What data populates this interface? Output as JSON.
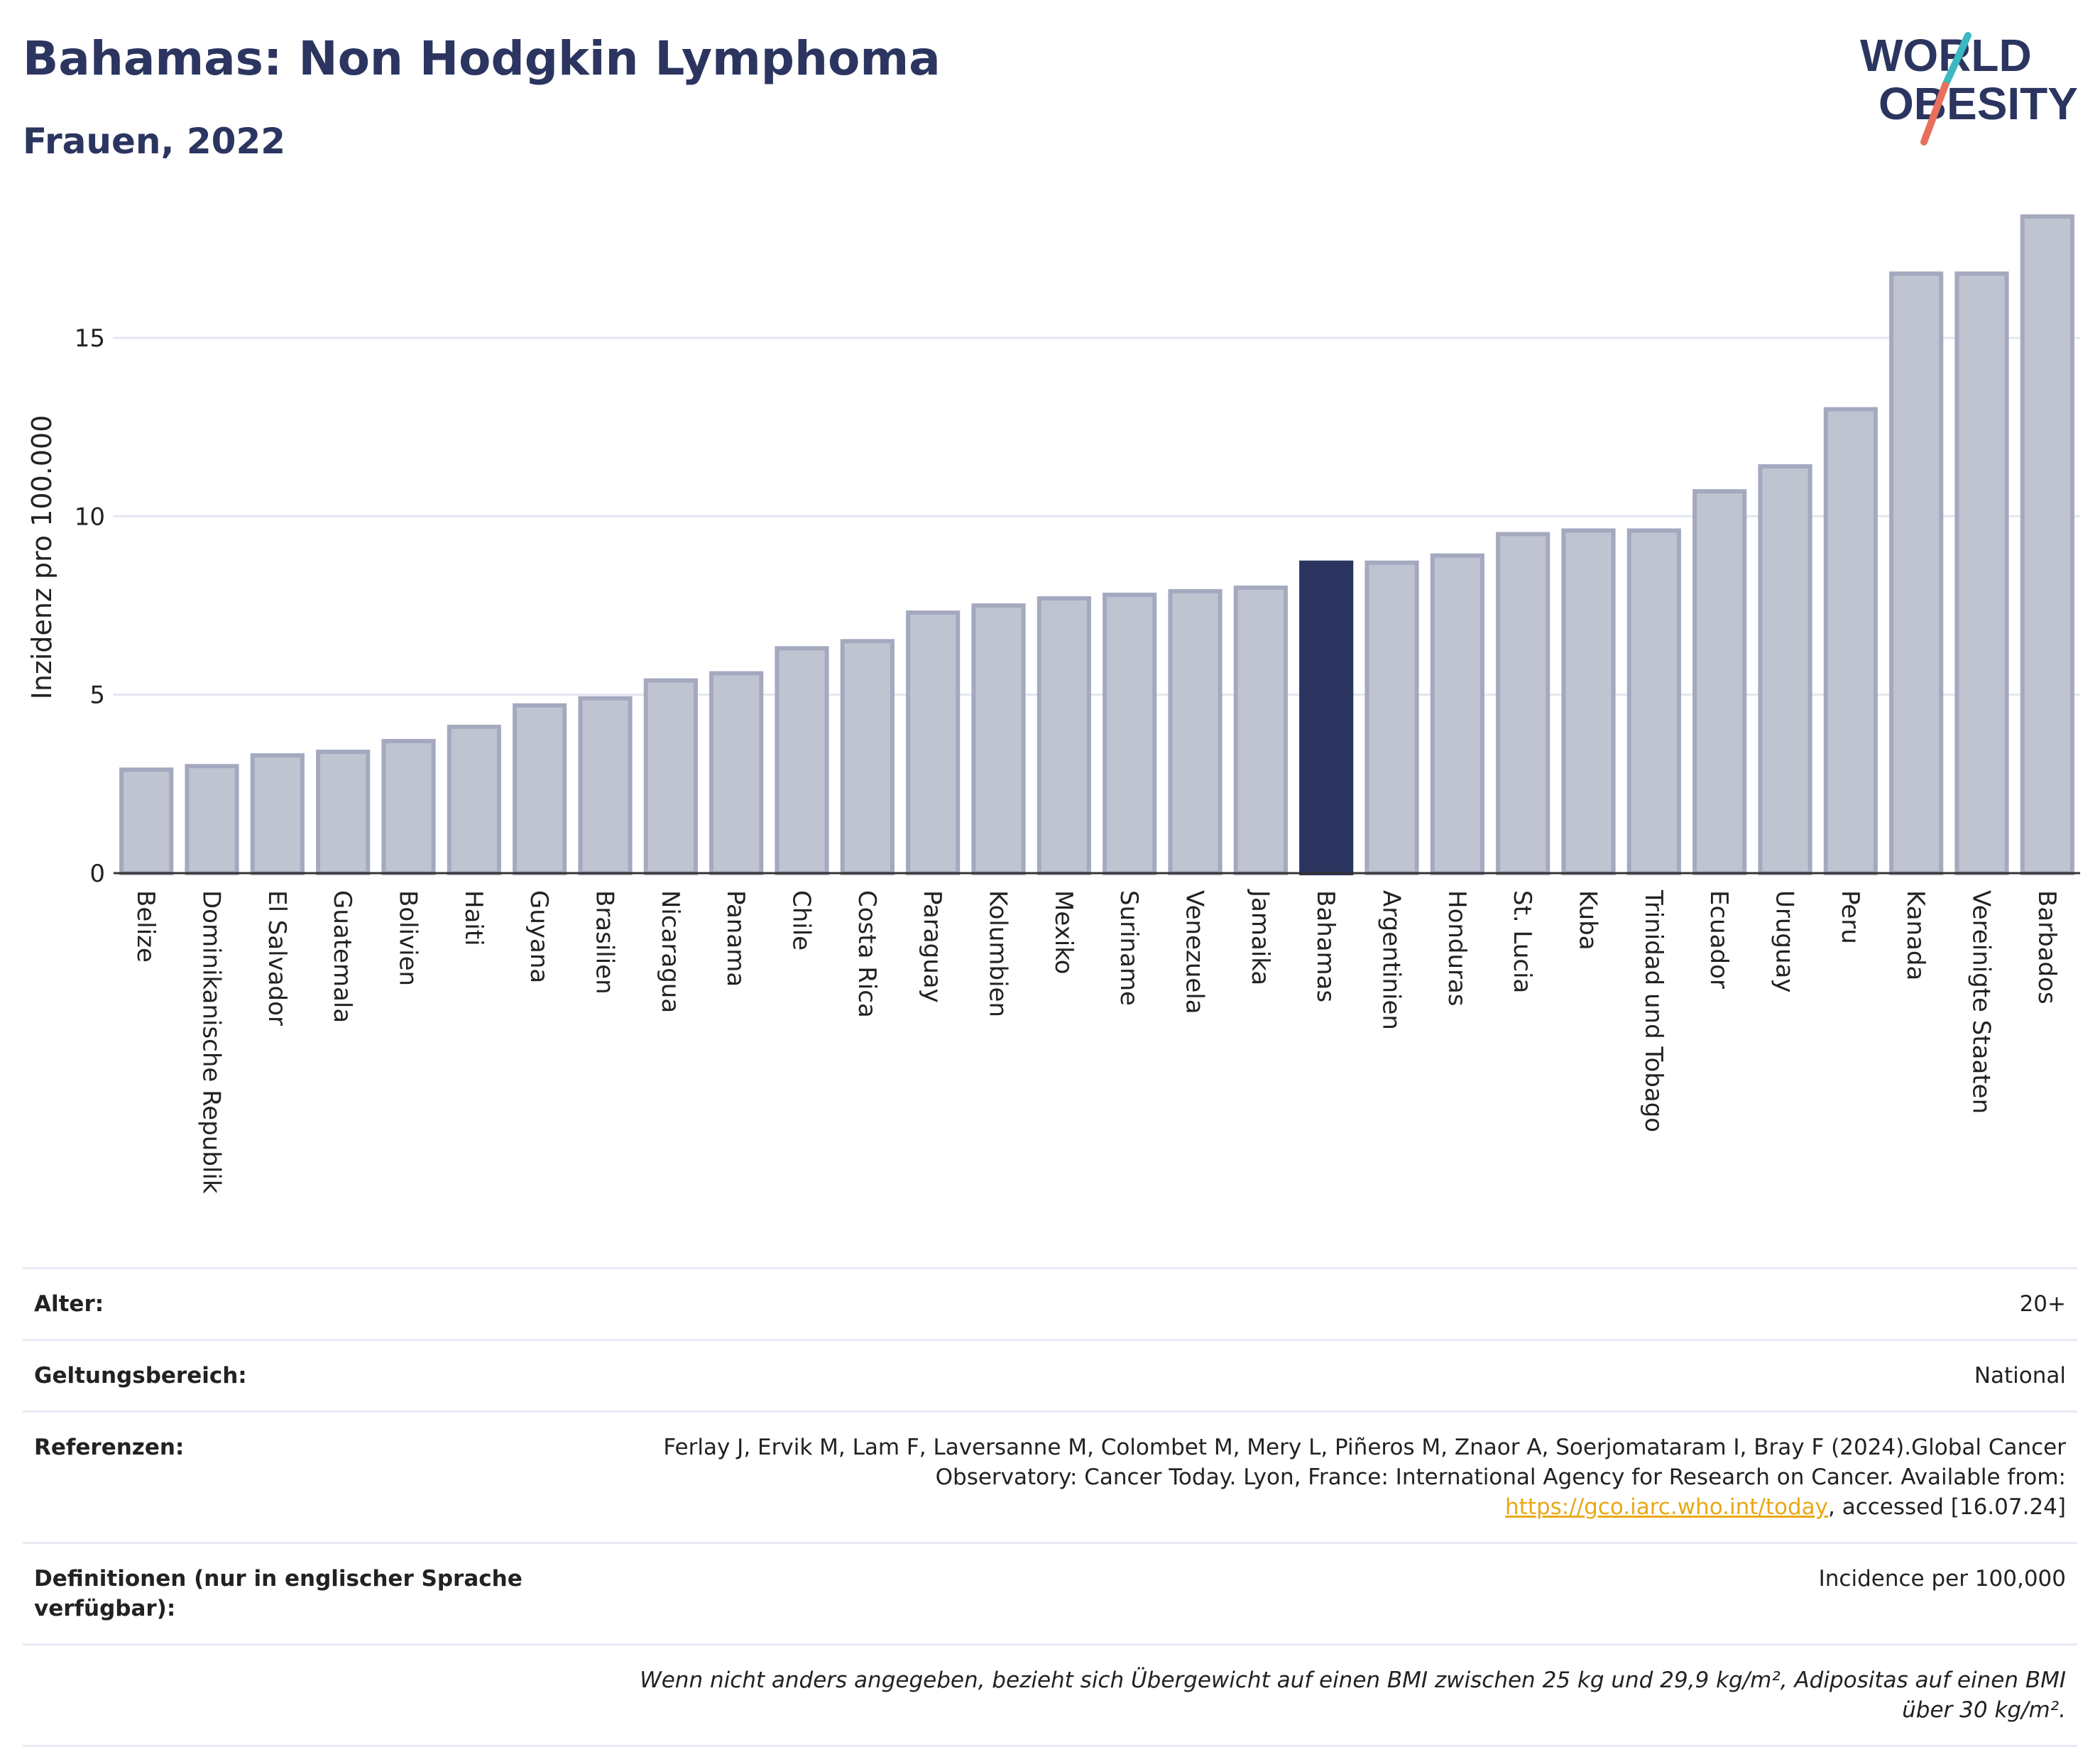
{
  "title": "Bahamas: Non Hodgkin Lymphoma",
  "subtitle": "Frauen, 2022",
  "logo": {
    "line1": "WORLD",
    "line2": "OBESITY",
    "colors": {
      "text": "#2b3560",
      "slash_top": "#3bb8c1",
      "slash_bottom": "#e8705a"
    }
  },
  "chart_data": {
    "type": "bar",
    "title": "Bahamas: Non Hodgkin Lymphoma",
    "subtitle": "Frauen, 2022",
    "xlabel": "",
    "ylabel": "Inzidenz pro 100.000",
    "ylim": [
      0,
      18.5
    ],
    "yticks": [
      0,
      5,
      10,
      15
    ],
    "grid": true,
    "highlight": "Bahamas",
    "colors": {
      "bar": "#c0c4d0",
      "bar_border": "#a4a9bf",
      "highlight": "#2b3560"
    },
    "categories": [
      "Belize",
      "Dominikanische Republik",
      "El Salvador",
      "Guatemala",
      "Bolivien",
      "Haiti",
      "Guyana",
      "Brasilien",
      "Nicaragua",
      "Panama",
      "Chile",
      "Costa Rica",
      "Paraguay",
      "Kolumbien",
      "Mexiko",
      "Suriname",
      "Venezuela",
      "Jamaika",
      "Bahamas",
      "Argentinien",
      "Honduras",
      "St. Lucia",
      "Kuba",
      "Trinidad und Tobago",
      "Ecuador",
      "Uruguay",
      "Peru",
      "Kanada",
      "Vereinigte Staaten",
      "Barbados"
    ],
    "values": [
      2.9,
      3.0,
      3.3,
      3.4,
      3.7,
      4.1,
      4.7,
      4.9,
      5.4,
      5.6,
      6.3,
      6.5,
      7.3,
      7.5,
      7.7,
      7.8,
      7.9,
      8.0,
      8.7,
      8.7,
      8.9,
      9.5,
      9.6,
      9.6,
      10.7,
      11.4,
      13.0,
      16.8,
      16.8,
      18.4
    ]
  },
  "info": {
    "age_label": "Alter:",
    "age_value": "20+",
    "scope_label": "Geltungsbereich:",
    "scope_value": "National",
    "ref_label": "Referenzen:",
    "ref_text_1": "Ferlay J, Ervik M, Lam F, Laversanne M, Colombet M, Mery L, Piñeros M, Znaor A, Soerjomataram I, Bray F (2024).Global Cancer Observatory: Cancer Today. Lyon, France: International Agency for Research on Cancer. Available from: ",
    "ref_link": "https://gco.iarc.who.int/today",
    "ref_text_2": ", accessed [16.07.24]",
    "def_label": "Definitionen (nur in englischer Sprache verfügbar):",
    "def_value": "Incidence per 100,000",
    "note": "Wenn nicht anders angegeben, bezieht sich Übergewicht auf einen BMI zwischen 25 kg und 29,9 kg/m², Adipositas auf einen BMI über 30 kg/m²."
  }
}
